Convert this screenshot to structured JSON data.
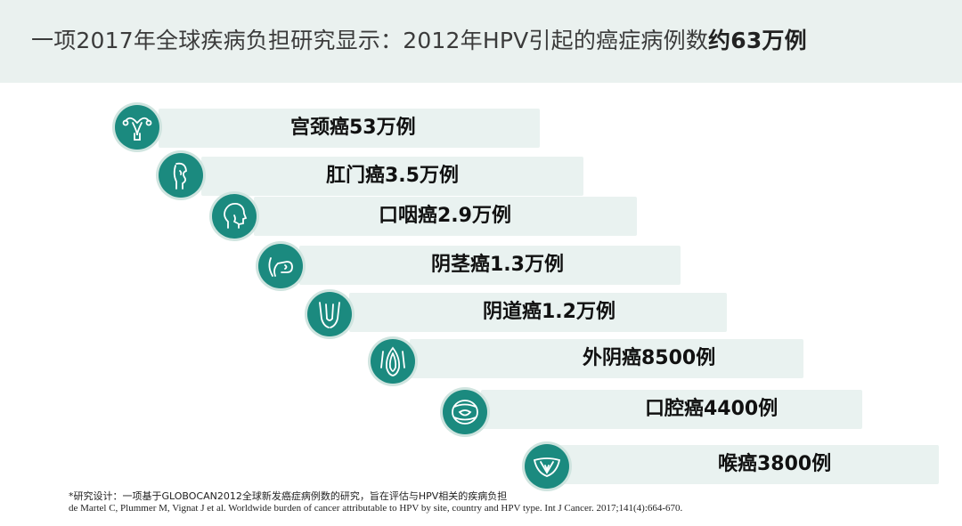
{
  "header": {
    "title_prefix": "一项2017年全球疾病负担研究显示：2012年HPV引起的癌症病例数",
    "title_emphasis": "约63万例"
  },
  "items": [
    {
      "label": "宫颈癌53万例",
      "icon": "uterus-icon"
    },
    {
      "label": "肛门癌3.5万例",
      "icon": "anal-icon"
    },
    {
      "label": "口咽癌2.9万例",
      "icon": "head-icon"
    },
    {
      "label": "阴茎癌1.3万例",
      "icon": "penis-icon"
    },
    {
      "label": "阴道癌1.2万例",
      "icon": "vagina-icon"
    },
    {
      "label": "外阴癌8500例",
      "icon": "vulva-icon"
    },
    {
      "label": "口腔癌4400例",
      "icon": "mouth-icon"
    },
    {
      "label": "喉癌3800例",
      "icon": "larynx-icon"
    }
  ],
  "footnote": {
    "design": "*研究设计：一项基于GLOBOCAN2012全球新发癌症病例数的研究，旨在评估与HPV相关的疾病负担",
    "reference": "de Martel C, Plummer M, Vignat J et al. Worldwide burden of cancer attributable to HPV by site, country and HPV type. Int J Cancer. 2017;141(4):664-670."
  },
  "colors": {
    "accent": "#1b8a7f",
    "bar": "#e9f2f0",
    "header_bg": "#eaf1ef"
  }
}
